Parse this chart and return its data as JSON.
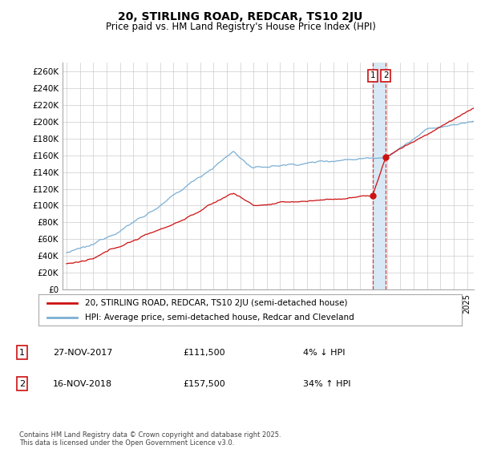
{
  "title": "20, STIRLING ROAD, REDCAR, TS10 2JU",
  "subtitle": "Price paid vs. HM Land Registry's House Price Index (HPI)",
  "legend_line1": "20, STIRLING ROAD, REDCAR, TS10 2JU (semi-detached house)",
  "legend_line2": "HPI: Average price, semi-detached house, Redcar and Cleveland",
  "transaction1_date": "27-NOV-2017",
  "transaction1_price": "£111,500",
  "transaction1_hpi": "4% ↓ HPI",
  "transaction2_date": "16-NOV-2018",
  "transaction2_price": "£157,500",
  "transaction2_hpi": "34% ↑ HPI",
  "footer": "Contains HM Land Registry data © Crown copyright and database right 2025.\nThis data is licensed under the Open Government Licence v3.0.",
  "hpi_color": "#7bafd4",
  "price_color": "#cc1111",
  "vline_color": "#cc1111",
  "shade_color": "#d8e8f5",
  "grid_color": "#cccccc",
  "background_color": "#ffffff",
  "ylim": [
    0,
    270000
  ],
  "ytick_step": 20000
}
